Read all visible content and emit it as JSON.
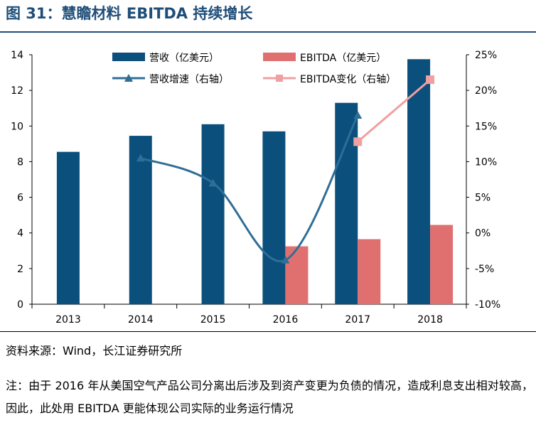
{
  "figure": {
    "title": "图 31：慧瞻材料 EBITDA 持续增长",
    "source": "资料来源：Wind，长江证券研究所",
    "note": "注：由于 2016 年从美国空气产品公司分离出后涉及到资产变更为负债的情况，造成利息支出相对较高，因此，此处用 EBITDA 更能体现公司实际的业务运行情况"
  },
  "colors": {
    "revenue_bar": "#0b4f7c",
    "ebitda_bar": "#e07070",
    "revenue_growth_line": "#2e6e97",
    "ebitda_change_line": "#f0a0a0",
    "title": "#1f4e79"
  },
  "chart_data": {
    "type": "bar",
    "categories": [
      "2013",
      "2014",
      "2015",
      "2016",
      "2017",
      "2018"
    ],
    "series": [
      {
        "name": "营收（亿美元）",
        "kind": "bar",
        "axis": "left",
        "values": [
          8.55,
          9.45,
          10.1,
          9.7,
          11.3,
          13.75
        ]
      },
      {
        "name": "EBITDA（亿美元）",
        "kind": "bar",
        "axis": "left",
        "values": [
          null,
          null,
          null,
          3.25,
          3.65,
          4.45
        ]
      },
      {
        "name": "营收增速（右轴）",
        "kind": "line",
        "marker": "triangle",
        "axis": "right",
        "values": [
          null,
          10.5,
          7.0,
          -3.8,
          16.5,
          null
        ]
      },
      {
        "name": "EBITDA变化（右轴）",
        "kind": "line",
        "marker": "square",
        "axis": "right",
        "values": [
          null,
          null,
          null,
          null,
          12.8,
          21.5
        ]
      }
    ],
    "y_left": {
      "min": 0,
      "max": 14,
      "ticks": [
        "0",
        "2",
        "4",
        "6",
        "8",
        "10",
        "12",
        "14"
      ]
    },
    "y_right": {
      "min": -10,
      "max": 25,
      "ticks": [
        "-10%",
        "-5%",
        "0%",
        "5%",
        "10%",
        "15%",
        "20%",
        "25%"
      ]
    },
    "legend": {
      "placement": "top",
      "columns": 2
    }
  }
}
